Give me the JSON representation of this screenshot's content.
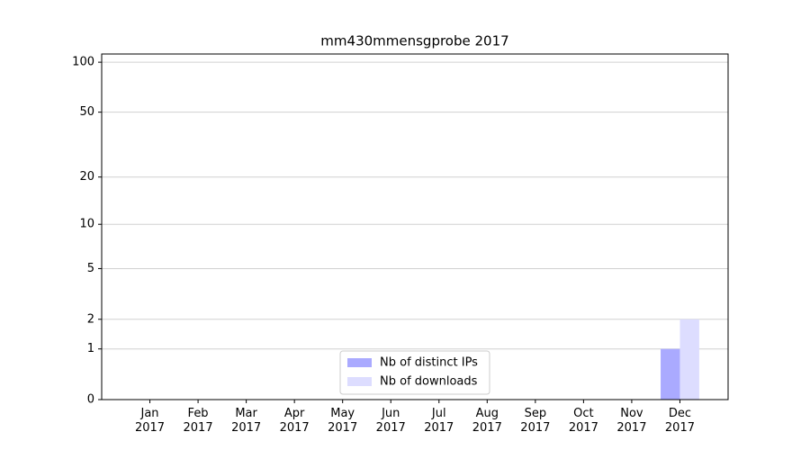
{
  "chart_data": {
    "type": "bar",
    "title": "mm430mmensgprobe 2017",
    "categories": [
      "Jan\n2017",
      "Feb\n2017",
      "Mar\n2017",
      "Apr\n2017",
      "May\n2017",
      "Jun\n2017",
      "Jul\n2017",
      "Aug\n2017",
      "Sep\n2017",
      "Oct\n2017",
      "Nov\n2017",
      "Dec\n2017"
    ],
    "series": [
      {
        "name": "Nb of distinct IPs",
        "color": "#aaaaff",
        "values": [
          0,
          0,
          0,
          0,
          0,
          0,
          0,
          0,
          0,
          0,
          0,
          1
        ]
      },
      {
        "name": "Nb of downloads",
        "color": "#ddddff",
        "values": [
          0,
          0,
          0,
          0,
          0,
          0,
          0,
          0,
          0,
          0,
          0,
          2
        ]
      }
    ],
    "yscale": "log1p",
    "ylim": [
      0,
      112
    ],
    "yticks": [
      0,
      1,
      2,
      5,
      10,
      20,
      50,
      100
    ],
    "grid": true,
    "legend": "lower center"
  }
}
